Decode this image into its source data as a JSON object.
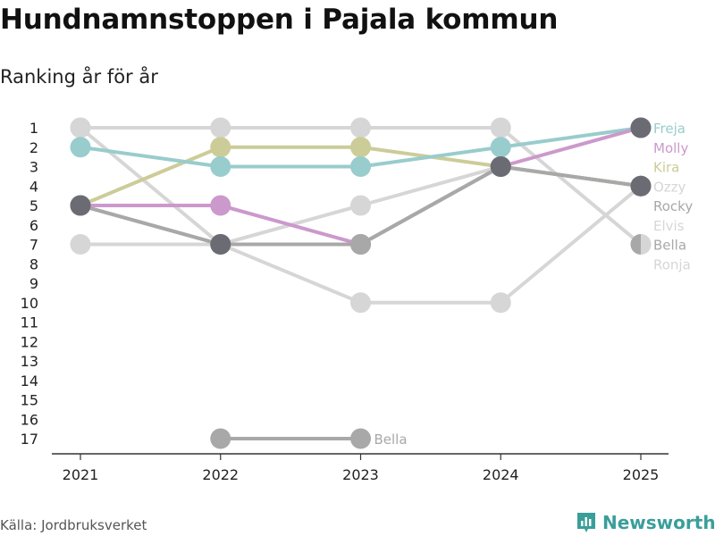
{
  "header": {
    "title": "Hundnamnstoppen i Pajala kommun",
    "subtitle": "Ranking år för år"
  },
  "footer": {
    "source": "Källa: Jordbruksverket",
    "brand": "Newsworthy"
  },
  "chart_data": {
    "type": "line",
    "title": "Hundnamnstoppen i Pajala kommun",
    "subtitle": "Ranking år för år",
    "xlabel": "",
    "ylabel": "",
    "x": [
      "2021",
      "2022",
      "2023",
      "2024",
      "2025"
    ],
    "y_ticks": [
      "1",
      "2",
      "3",
      "4",
      "5",
      "6",
      "7",
      "8",
      "9",
      "10",
      "11",
      "12",
      "13",
      "14",
      "15",
      "16",
      "17"
    ],
    "ylim": [
      1,
      17
    ],
    "y_reversed": true,
    "grid": false,
    "series": [
      {
        "name": "Elvis",
        "color": "#d6d6d6",
        "values": [
          7,
          7,
          5,
          3,
          4
        ],
        "label": "Elvis"
      },
      {
        "name": "Ronja",
        "color": "#d6d6d6",
        "values": [
          1,
          7,
          10,
          10,
          4
        ],
        "label": "Ronja"
      },
      {
        "name": "Ozzy",
        "color": "#d6d6d6",
        "values": [
          1,
          1,
          1,
          1,
          7
        ],
        "label": "Ozzy"
      },
      {
        "name": "Bella",
        "color": "#a8a8a8",
        "values": [
          null,
          17,
          17,
          null,
          null
        ],
        "label": "Bella"
      },
      {
        "name": "Rocky",
        "color": "#a8a8a8",
        "values": [
          5,
          7,
          7,
          3,
          4
        ],
        "label": "Rocky"
      },
      {
        "name": "Kira",
        "color": "#cccc99",
        "values": [
          5,
          2,
          2,
          3,
          4
        ],
        "label": "Kira"
      },
      {
        "name": "Freja",
        "color": "#99cccc",
        "values": [
          2,
          3,
          3,
          2,
          1
        ],
        "label": "Freja"
      },
      {
        "name": "Molly",
        "color": "#cc99cc",
        "values": [
          5,
          5,
          7,
          3,
          1
        ],
        "label": "Molly"
      },
      {
        "name": "Bella",
        "color": "#a8a8a8",
        "values": [
          5,
          7,
          7,
          3,
          4
        ],
        "label": "Bella"
      }
    ],
    "point_colors": {
      "dark": "#6b6b73"
    },
    "end_labels": [
      {
        "text": "Freja",
        "color": "#99cccc"
      },
      {
        "text": "Molly",
        "color": "#cc99cc"
      },
      {
        "text": "Kira",
        "color": "#cccc99"
      },
      {
        "text": "Ozzy",
        "color": "#d6d6d6"
      },
      {
        "text": "Rocky",
        "color": "#a8a8a8"
      },
      {
        "text": "Elvis",
        "color": "#d6d6d6"
      },
      {
        "text": "Bella",
        "color": "#a8a8a8"
      },
      {
        "text": "Ronja",
        "color": "#d6d6d6"
      }
    ],
    "inline_labels": [
      {
        "text": "Bella",
        "color": "#a8a8a8",
        "x": "2023",
        "y": 17
      }
    ]
  }
}
